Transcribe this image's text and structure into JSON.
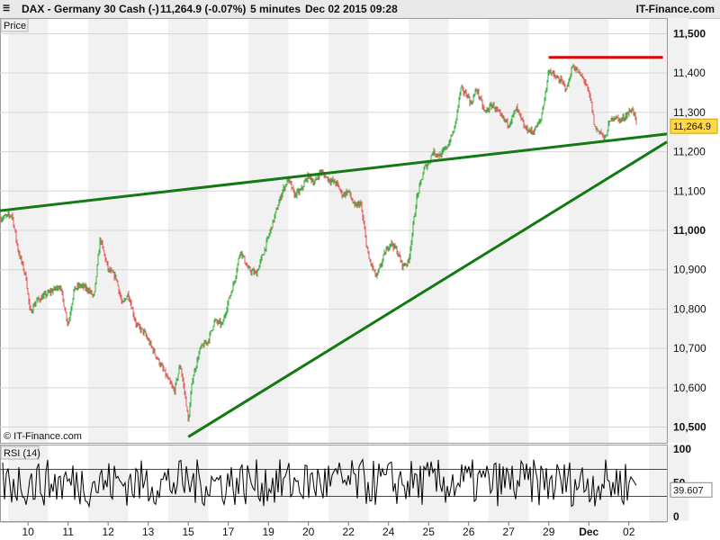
{
  "header": {
    "menu_icon": "menu-icon",
    "instrument": "DAX - Germany 30 Cash (-)",
    "quote": "11,264.9 (-0.07%)",
    "interval": "5 minutes",
    "datetime": "Dec 02 2015 09:28",
    "brand": "IT-Finance.com"
  },
  "colors": {
    "up": "#3cb043",
    "down": "#e05b5b",
    "trend": "#137a13",
    "resistance": "#e00000",
    "price_badge": "#ffd84a",
    "rsi_line": "#000000",
    "rsi_bands": "#3a3aa8"
  },
  "chart_data": [
    {
      "type": "line",
      "panel_label": "Price",
      "watermark": "© IT-Finance.com",
      "ylim": [
        10460,
        11540
      ],
      "y_ticks": [
        "10,500",
        "10,600",
        "10,700",
        "10,800",
        "10,900",
        "11,000",
        "11,100",
        "11,200",
        "11,300",
        "11,400",
        "11,500"
      ],
      "y_tick_values": [
        10500,
        10600,
        10700,
        10800,
        10900,
        11000,
        11100,
        11200,
        11300,
        11400,
        11500
      ],
      "x_ticks": [
        "10",
        "11",
        "12",
        "13",
        "15",
        "17",
        "19",
        "20",
        "22",
        "24",
        "25",
        "26",
        "27",
        "29",
        "Dec",
        "02"
      ],
      "x_tick_pos": [
        0.5,
        1.5,
        2.5,
        3.5,
        4.5,
        5.5,
        6.5,
        7.5,
        8.5,
        9.5,
        10.5,
        11.5,
        12.5,
        13.5,
        14.5,
        15.5
      ],
      "x_range": [
        -0.2,
        16.45
      ],
      "last_value": 11264.9,
      "last_value_label": "11,264.9",
      "series": [
        {
          "values_x": [
            -0.2,
            0.1,
            0.25,
            0.45,
            0.55,
            0.7,
            1.0,
            1.3,
            1.5,
            1.65,
            1.8,
            2.0,
            2.15,
            2.3,
            2.5,
            2.7,
            2.85,
            3.0,
            3.2,
            3.4,
            3.6,
            3.8,
            4.0,
            4.15,
            4.3,
            4.45,
            4.5,
            4.6,
            4.8,
            5.0,
            5.15,
            5.35,
            5.5,
            5.65,
            5.8,
            6.0,
            6.2,
            6.4,
            6.55,
            6.7,
            6.85,
            7.0,
            7.15,
            7.3,
            7.5,
            7.65,
            7.8,
            8.0,
            8.2,
            8.35,
            8.5,
            8.65,
            8.8,
            9.0,
            9.2,
            9.4,
            9.55,
            9.7,
            9.85,
            10.0,
            10.2,
            10.4,
            10.5,
            10.6,
            10.8,
            11.0,
            11.15,
            11.3,
            11.5,
            11.55,
            11.7,
            11.9,
            12.1,
            12.3,
            12.5,
            12.7,
            12.9,
            13.1,
            13.3,
            13.45,
            13.5,
            13.65,
            13.8,
            13.95,
            14.1,
            14.25,
            14.4,
            14.55,
            14.65,
            14.8,
            14.9,
            15.0,
            15.1,
            15.3,
            15.5,
            15.6,
            15.7
          ],
          "values_y": [
            11030,
            11040,
            10950,
            10880,
            10790,
            10820,
            10840,
            10860,
            10760,
            10850,
            10860,
            10850,
            10830,
            10980,
            10900,
            10880,
            10810,
            10840,
            10760,
            10740,
            10700,
            10660,
            10620,
            10590,
            10660,
            10560,
            10510,
            10620,
            10700,
            10720,
            10770,
            10760,
            10820,
            10870,
            10950,
            10900,
            10890,
            10950,
            11000,
            11050,
            11100,
            11130,
            11090,
            11100,
            11140,
            11120,
            11150,
            11130,
            11120,
            11090,
            11100,
            11060,
            11070,
            10930,
            10880,
            10940,
            10970,
            10950,
            10910,
            10920,
            11080,
            11160,
            11170,
            11200,
            11190,
            11220,
            11260,
            11360,
            11340,
            11320,
            11360,
            11300,
            11320,
            11290,
            11270,
            11310,
            11260,
            11250,
            11280,
            11370,
            11410,
            11390,
            11380,
            11360,
            11420,
            11400,
            11380,
            11330,
            11260,
            11250,
            11230,
            11270,
            11290,
            11280,
            11300,
            11310,
            11265
          ]
        }
      ],
      "trendlines": [
        {
          "name": "upper-trendline",
          "x": [
            -0.2,
            16.45
          ],
          "y": [
            11050,
            11245
          ]
        },
        {
          "name": "lower-trendline",
          "x": [
            4.5,
            16.45
          ],
          "y": [
            10475,
            11225
          ]
        }
      ],
      "resistance_line": {
        "x": [
          13.5,
          16.35
        ],
        "y": 11440
      }
    },
    {
      "type": "line",
      "panel_label": "RSI (14)",
      "ylim": [
        0,
        100
      ],
      "y_ticks": [
        "100",
        "50",
        "0"
      ],
      "y_tick_values": [
        100,
        50,
        0
      ],
      "bands": [
        70,
        30
      ],
      "last_value": 39.607,
      "last_value_label": "39.607"
    }
  ]
}
